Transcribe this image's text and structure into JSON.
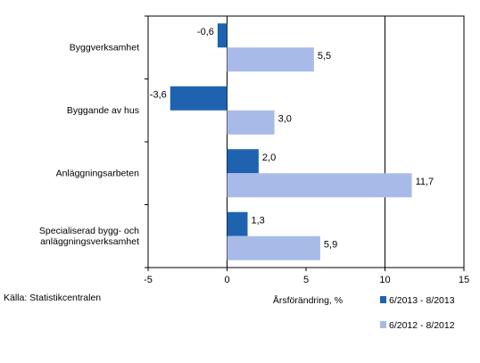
{
  "source_note": "Källa: Statistikcentralen",
  "colors": {
    "series_1": "#1f63b0",
    "series_2": "#a8bbe8",
    "axis": "#000000",
    "gridline": "#000000"
  },
  "chart_data": {
    "type": "bar",
    "orientation": "horizontal",
    "categories": [
      [
        "Byggverksamhet"
      ],
      [
        "Byggande av hus"
      ],
      [
        "Anläggningsarbeten"
      ],
      [
        "Specialiserad bygg- och",
        "anläggningsverksamhet"
      ]
    ],
    "series": [
      {
        "name": "6/2013 - 8/2013",
        "values": [
          -0.6,
          -3.6,
          2.0,
          1.3
        ],
        "labels": [
          "-0,6",
          "-3,6",
          "2,0",
          "1,3"
        ]
      },
      {
        "name": "6/2012 - 8/2012",
        "values": [
          5.5,
          3.0,
          11.7,
          5.9
        ],
        "labels": [
          "5,5",
          "3,0",
          "11,7",
          "5,9"
        ]
      }
    ],
    "title": "",
    "xlabel": "Årsförändring, %",
    "ylabel": "",
    "xlim": [
      -5,
      15
    ],
    "xticks": [
      -5,
      0,
      5,
      10,
      15
    ],
    "xtick_labels": [
      "-5",
      "0",
      "5",
      "10",
      "15"
    ],
    "gridlines_x": [
      0,
      10
    ],
    "legend_position": "bottom-right"
  }
}
